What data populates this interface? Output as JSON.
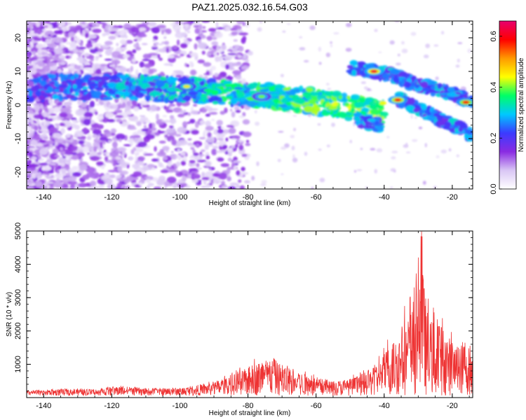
{
  "title": "PAZ1.2025.032.16.54.G03",
  "chart_data": [
    {
      "type": "heatmap",
      "xlabel": "Height of straight line (km)",
      "ylabel": "Frequency (Hz)",
      "xlim": [
        -145,
        -14
      ],
      "ylim": [
        -25,
        25
      ],
      "x_ticks": [
        "-140",
        "-120",
        "-100",
        "-80",
        "-60",
        "-40",
        "-20"
      ],
      "y_ticks": [
        "-20",
        "-10",
        "0",
        "10",
        "20"
      ],
      "colorbar": {
        "label": "Normalized spectral amplitude",
        "range": [
          0.0,
          0.66
        ],
        "ticks": [
          "0.0",
          "0.2",
          "0.4",
          "0.6"
        ],
        "colormap": [
          "#ffffff",
          "#d9c6f5",
          "#8a2be2",
          "#3b3bff",
          "#00c8ff",
          "#00ff66",
          "#ffff00",
          "#ff9900",
          "#ff0000",
          "#e8006e"
        ]
      },
      "ridges": [
        {
          "x": [
            -145,
            -133,
            -125,
            -117,
            -110,
            -100,
            -92,
            -84,
            -76,
            -68,
            -60,
            -52,
            -46,
            -40
          ],
          "y": [
            5,
            5.5,
            5,
            5.5,
            5,
            4.5,
            4,
            3.5,
            3,
            2,
            1,
            -0.5,
            -1.5,
            -2.5
          ]
        },
        {
          "x": [
            -50,
            -46,
            -43,
            -38,
            -34,
            -30,
            -26,
            -22,
            -18,
            -14
          ],
          "y": [
            11,
            10.5,
            10,
            9,
            7.5,
            6,
            5,
            4,
            2.5,
            1
          ]
        },
        {
          "x": [
            -36,
            -33,
            -30,
            -27,
            -24,
            -21,
            -18,
            -14
          ],
          "y": [
            2,
            0.5,
            -1,
            -2.5,
            -4,
            -5.5,
            -7,
            -9
          ]
        },
        {
          "x": [
            -48,
            -44,
            -41
          ],
          "y": [
            -4.5,
            -5.5,
            -6
          ]
        }
      ],
      "hotspots": [
        {
          "x": -43,
          "y": 10,
          "value": 0.62
        },
        {
          "x": -36,
          "y": 1.5,
          "value": 0.6
        },
        {
          "x": -16,
          "y": 0.8,
          "value": 0.58
        },
        {
          "x": -98,
          "y": 5.5,
          "value": 0.45
        },
        {
          "x": -76,
          "y": 2.5,
          "value": 0.4
        }
      ]
    },
    {
      "type": "line",
      "xlabel": "Height of straight line (km)",
      "ylabel": "SNR (10 * v/v)",
      "xlim": [
        -145,
        -14
      ],
      "ylim": [
        0,
        5000
      ],
      "x_ticks": [
        "-140",
        "-120",
        "-100",
        "-80",
        "-60",
        "-40",
        "-20"
      ],
      "y_ticks": [
        "1000",
        "2000",
        "3000",
        "4000",
        "5000"
      ],
      "color": "#ee3333",
      "envelope": [
        {
          "x": -145,
          "y": 200
        },
        {
          "x": -140,
          "y": 220
        },
        {
          "x": -133,
          "y": 280
        },
        {
          "x": -125,
          "y": 240
        },
        {
          "x": -121,
          "y": 330
        },
        {
          "x": -117,
          "y": 360
        },
        {
          "x": -110,
          "y": 280
        },
        {
          "x": -100,
          "y": 300
        },
        {
          "x": -95,
          "y": 400
        },
        {
          "x": -90,
          "y": 520
        },
        {
          "x": -85,
          "y": 750
        },
        {
          "x": -80,
          "y": 1050
        },
        {
          "x": -78,
          "y": 1200
        },
        {
          "x": -75,
          "y": 1380
        },
        {
          "x": -72,
          "y": 1350
        },
        {
          "x": -68,
          "y": 950
        },
        {
          "x": -64,
          "y": 850
        },
        {
          "x": -60,
          "y": 700
        },
        {
          "x": -55,
          "y": 550
        },
        {
          "x": -50,
          "y": 650
        },
        {
          "x": -45,
          "y": 900
        },
        {
          "x": -42,
          "y": 1200
        },
        {
          "x": -39,
          "y": 1800
        },
        {
          "x": -36,
          "y": 2300
        },
        {
          "x": -33,
          "y": 3000
        },
        {
          "x": -31,
          "y": 3600
        },
        {
          "x": -30,
          "y": 4200
        },
        {
          "x": -29,
          "y": 5000
        },
        {
          "x": -27,
          "y": 2900
        },
        {
          "x": -24,
          "y": 2700
        },
        {
          "x": -22,
          "y": 2500
        },
        {
          "x": -20,
          "y": 2000
        },
        {
          "x": -18,
          "y": 1800
        },
        {
          "x": -16,
          "y": 2300
        },
        {
          "x": -14,
          "y": 1300
        }
      ]
    }
  ]
}
